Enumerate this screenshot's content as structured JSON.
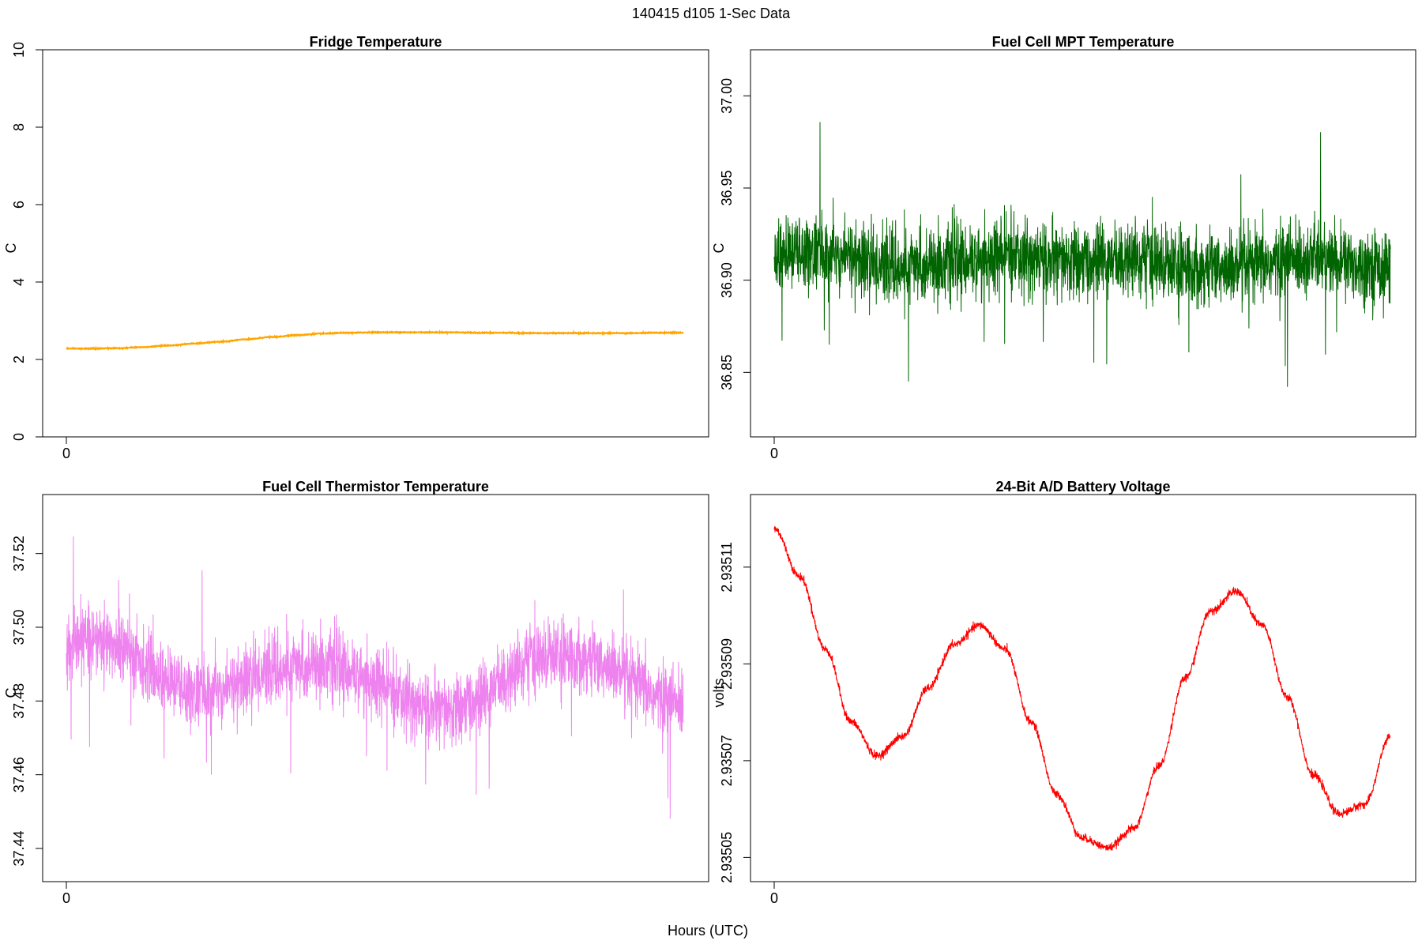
{
  "figure": {
    "title": "140415   d105   1-Sec Data",
    "xlabel": "Hours (UTC)"
  },
  "chart_data": [
    {
      "type": "line",
      "title": "Fridge Temperature",
      "ylabel": "C",
      "color": "#ffa500",
      "ylim": [
        0,
        10
      ],
      "yticks": [
        0,
        2,
        4,
        6,
        8,
        10
      ],
      "ytick_labels": [
        "0",
        "2",
        "4",
        "6",
        "8",
        "10"
      ],
      "xticks": [
        0
      ],
      "xtick_labels": [
        "0"
      ],
      "x_range_hours": [
        0,
        24
      ],
      "noise": 0.012,
      "series": [
        {
          "x": [
            0,
            1,
            2,
            3,
            4,
            5,
            6,
            7,
            8,
            9,
            10,
            11,
            12,
            13,
            14,
            15,
            16,
            17,
            18,
            19,
            20,
            21,
            22,
            23,
            24
          ],
          "values": [
            2.28,
            2.28,
            2.29,
            2.32,
            2.36,
            2.41,
            2.46,
            2.52,
            2.58,
            2.63,
            2.67,
            2.69,
            2.7,
            2.7,
            2.7,
            2.7,
            2.69,
            2.69,
            2.68,
            2.68,
            2.68,
            2.68,
            2.68,
            2.69,
            2.69
          ]
        }
      ]
    },
    {
      "type": "line",
      "title": "Fuel Cell MPT Temperature",
      "ylabel": "C",
      "color": "#006400",
      "ylim": [
        36.815,
        37.025
      ],
      "yticks": [
        36.85,
        36.9,
        36.95,
        37.0
      ],
      "ytick_labels": [
        "36.85",
        "36.90",
        "36.95",
        "37.00"
      ],
      "xticks": [
        0
      ],
      "xtick_labels": [
        "0"
      ],
      "x_range_hours": [
        0,
        24
      ],
      "noise": 0.028,
      "series": [
        {
          "x": [
            0,
            1,
            2,
            3,
            4,
            5,
            6,
            7,
            8,
            9,
            10,
            11,
            12,
            13,
            14,
            15,
            16,
            17,
            18,
            19,
            20,
            21,
            22,
            23,
            24
          ],
          "values": [
            36.912,
            36.915,
            36.914,
            36.913,
            36.908,
            36.906,
            36.908,
            36.91,
            36.911,
            36.913,
            36.912,
            36.91,
            36.909,
            36.911,
            36.912,
            36.91,
            36.908,
            36.906,
            36.905,
            36.908,
            36.911,
            36.912,
            36.91,
            36.908,
            36.907
          ]
        }
      ]
    },
    {
      "type": "line",
      "title": "Fuel Cell Thermistor Temperature",
      "ylabel": "C",
      "color": "#ee82ee",
      "ylim": [
        37.431,
        37.536
      ],
      "yticks": [
        37.44,
        37.46,
        37.48,
        37.5,
        37.52
      ],
      "ytick_labels": [
        "37.44",
        "37.46",
        "37.48",
        "37.50",
        "37.52"
      ],
      "xticks": [
        0
      ],
      "xtick_labels": [
        "0"
      ],
      "x_range_hours": [
        0,
        24
      ],
      "noise": 0.013,
      "series": [
        {
          "x": [
            0,
            1,
            2,
            3,
            4,
            5,
            6,
            7,
            8,
            9,
            10,
            11,
            12,
            13,
            14,
            15,
            16,
            17,
            18,
            19,
            20,
            21,
            22,
            23,
            24
          ],
          "values": [
            37.494,
            37.497,
            37.495,
            37.49,
            37.485,
            37.482,
            37.483,
            37.486,
            37.488,
            37.489,
            37.49,
            37.488,
            37.485,
            37.481,
            37.478,
            37.477,
            37.48,
            37.486,
            37.491,
            37.493,
            37.492,
            37.489,
            37.485,
            37.481,
            37.479
          ]
        }
      ]
    },
    {
      "type": "line",
      "title": "24-Bit A/D Battery Voltage",
      "ylabel": "volts",
      "color": "#ff0000",
      "ylim": [
        2.935045,
        2.935125
      ],
      "yticks": [
        2.93505,
        2.93507,
        2.93509,
        2.93511
      ],
      "ytick_labels": [
        "2.93505",
        "2.93507",
        "2.93509",
        "2.93511"
      ],
      "xticks": [
        0
      ],
      "xtick_labels": [
        "0"
      ],
      "x_range_hours": [
        0,
        24
      ],
      "noise": 1.2e-06,
      "series": [
        {
          "x": [
            0,
            1,
            2,
            3,
            4,
            5,
            6,
            7,
            8,
            9,
            10,
            11,
            12,
            13,
            14,
            15,
            16,
            17,
            18,
            19,
            20,
            21,
            22,
            23,
            24
          ],
          "values": [
            2.935118,
            2.935108,
            2.935093,
            2.935078,
            2.935071,
            2.935075,
            2.935085,
            2.935094,
            2.935098,
            2.935093,
            2.935078,
            2.935063,
            2.935054,
            2.935052,
            2.935056,
            2.935069,
            2.935087,
            2.935101,
            2.935105,
            2.935098,
            2.935083,
            2.935067,
            2.935059,
            2.935061,
            2.935075
          ]
        }
      ]
    }
  ]
}
